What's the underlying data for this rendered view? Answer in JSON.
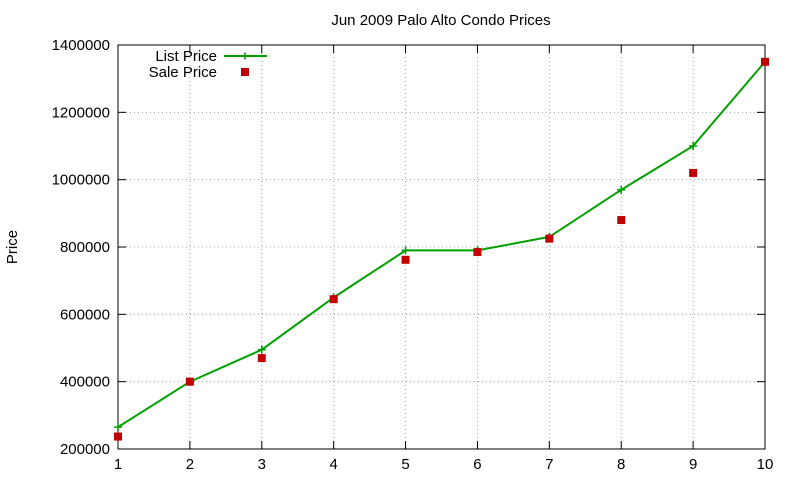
{
  "chart_data": {
    "type": "line",
    "title": "Jun 2009 Palo Alto Condo Prices",
    "xlabel": "",
    "ylabel": "Price",
    "xlim": [
      1,
      10
    ],
    "ylim": [
      200000,
      1400000
    ],
    "xticks": [
      1,
      2,
      3,
      4,
      5,
      6,
      7,
      8,
      9,
      10
    ],
    "yticks": [
      200000,
      400000,
      600000,
      800000,
      1000000,
      1200000,
      1400000
    ],
    "grid": true,
    "legend_position": "top-left",
    "x": [
      1,
      2,
      3,
      4,
      5,
      6,
      7,
      8,
      9,
      10
    ],
    "series": [
      {
        "name": "List Price",
        "style": "line-with-plus-markers",
        "color": "#00a000",
        "values": [
          265000,
          400000,
          495000,
          650000,
          790000,
          790000,
          830000,
          970000,
          1100000,
          1350000
        ]
      },
      {
        "name": "Sale Price",
        "style": "square-points",
        "color": "#c00000",
        "values": [
          237000,
          400000,
          470000,
          645000,
          762000,
          785000,
          825000,
          880000,
          1020000,
          1350000
        ]
      }
    ]
  }
}
